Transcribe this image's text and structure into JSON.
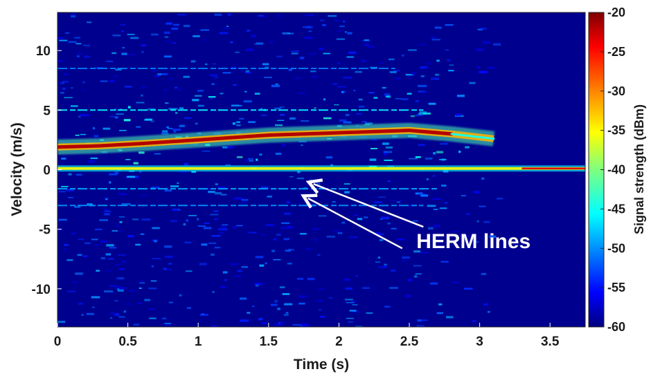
{
  "chart_data": {
    "type": "heatmap",
    "title": "",
    "xlabel": "Time (s)",
    "ylabel": "Velocity (m/s)",
    "xlim": [
      0,
      3.75
    ],
    "ylim": [
      -13.2,
      13.2
    ],
    "x_ticks": [
      0,
      0.5,
      1,
      1.5,
      2,
      2.5,
      3,
      3.5
    ],
    "x_tick_labels": [
      "0",
      "0.5",
      "1",
      "1.5",
      "2",
      "2.5",
      "3",
      "3.5"
    ],
    "y_ticks": [
      10,
      5,
      0,
      -5,
      -10
    ],
    "y_tick_labels": [
      "10",
      "5",
      "0",
      "-5",
      "-10"
    ],
    "colorbar": {
      "label": "Signal strength (dBm)",
      "range": [
        -60,
        -20
      ],
      "ticks": [
        -20,
        -25,
        -30,
        -35,
        -40,
        -45,
        -50,
        -55,
        -60
      ],
      "tick_labels": [
        "-20",
        "-25",
        "-30",
        "-35",
        "-40",
        "-45",
        "-50",
        "-55",
        "-60"
      ],
      "colormap": "jet"
    },
    "background_level_dbm": -58,
    "features": [
      {
        "kind": "main-trace",
        "points": [
          [
            0,
            1.9
          ],
          [
            0.3,
            2.0
          ],
          [
            0.6,
            2.2
          ],
          [
            1.0,
            2.5
          ],
          [
            1.5,
            2.9
          ],
          [
            2.0,
            3.1
          ],
          [
            2.5,
            3.3
          ],
          [
            2.8,
            3.0
          ],
          [
            3.1,
            2.6
          ]
        ],
        "level_dbm": -22
      },
      {
        "kind": "zero-velocity-line",
        "velocity": 0.1,
        "x_range": [
          0,
          3.75
        ],
        "level_dbm": -35
      },
      {
        "kind": "weak-line",
        "velocity": 5.0,
        "x_range": [
          0,
          2.6
        ],
        "level_dbm": -45
      },
      {
        "kind": "weak-line",
        "velocity": 8.5,
        "x_range": [
          0,
          2.4
        ],
        "level_dbm": -50
      },
      {
        "kind": "herm-line",
        "velocity": -1.6,
        "x_range": [
          0,
          2.7
        ],
        "level_dbm": -48
      },
      {
        "kind": "herm-line",
        "velocity": -3.0,
        "x_range": [
          0,
          2.6
        ],
        "level_dbm": -49
      }
    ],
    "annotations": [
      {
        "text": "HERM lines",
        "text_position": [
          2.55,
          -6.0
        ],
        "arrows": [
          {
            "from": [
              2.6,
              -4.8
            ],
            "to": [
              1.82,
              -1.2
            ]
          },
          {
            "from": [
              2.45,
              -6.6
            ],
            "to": [
              1.78,
              -2.4
            ]
          }
        ]
      }
    ]
  }
}
